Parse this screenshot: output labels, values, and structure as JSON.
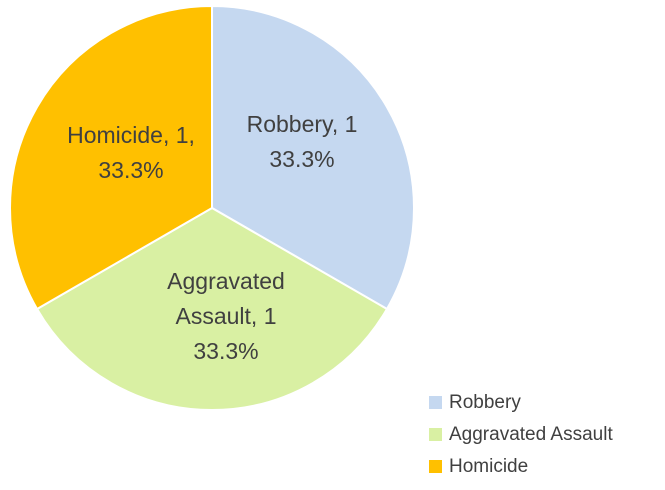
{
  "chart_data": {
    "type": "pie",
    "start_angle_deg": 0,
    "direction": "clockwise",
    "legend_position": "bottom-right",
    "slices": [
      {
        "label": "Robbery",
        "value": 1,
        "percent": "33.3%",
        "color": "#c5d8f0",
        "data_label_lines": [
          "Robbery, 1",
          "33.3%"
        ]
      },
      {
        "label": "Aggravated Assault",
        "value": 1,
        "percent": "33.3%",
        "color": "#d9f0a3",
        "data_label_lines": [
          "Aggravated",
          "Assault, 1",
          "33.3%"
        ]
      },
      {
        "label": "Homicide",
        "value": 1,
        "percent": "33.3%",
        "color": "#ffc000",
        "data_label_lines": [
          "Homicide, 1,",
          "33.3%"
        ]
      }
    ],
    "legend": [
      "Robbery",
      "Aggravated Assault",
      "Homicide"
    ]
  }
}
